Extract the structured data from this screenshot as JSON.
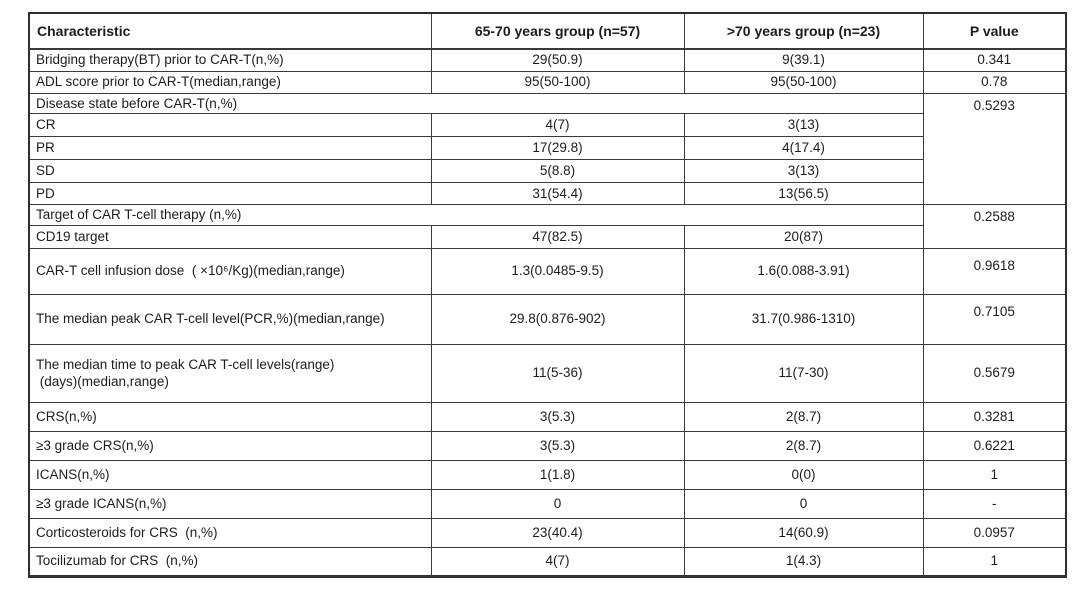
{
  "table": {
    "columns": [
      "Characteristic",
      "65-70 years group (n=57)",
      ">70 years group (n=23)",
      "P value"
    ],
    "rows": [
      {
        "kind": "data",
        "label": "Bridging therapy(BT) prior to CAR-T(n,%)",
        "group1": "29(50.9)",
        "group2": "9(39.1)",
        "p": "0.341"
      },
      {
        "kind": "data",
        "label": "ADL score prior to CAR-T(median,range)",
        "group1": "95(50-100)",
        "group2": "95(50-100)",
        "p": "0.78"
      },
      {
        "kind": "section",
        "label": "Disease state before CAR-T(n,%)",
        "p": "0.5293",
        "p_rowspan": 5
      },
      {
        "kind": "sub",
        "label": "CR",
        "group1": "4(7)",
        "group2": "3(13)"
      },
      {
        "kind": "sub",
        "label": "PR",
        "group1": "17(29.8)",
        "group2": "4(17.4)"
      },
      {
        "kind": "sub",
        "label": "SD",
        "group1": "5(8.8)",
        "group2": "3(13)"
      },
      {
        "kind": "sub",
        "label": "PD",
        "group1": "31(54.4)",
        "group2": "13(56.5)"
      },
      {
        "kind": "section",
        "label": "Target of CAR T-cell therapy (n,%)",
        "p": "0.2588",
        "p_rowspan": 2
      },
      {
        "kind": "sub",
        "label": "CD19 target",
        "group1": "47(82.5)",
        "group2": "20(87)"
      },
      {
        "kind": "data",
        "label": "CAR-T cell infusion dose  ( ×10⁶/Kg)(median,range)",
        "group1": "1.3(0.0485-9.5)",
        "group2": "1.6(0.088-3.91)",
        "p": "0.9618"
      },
      {
        "kind": "data",
        "label": "The median peak CAR T-cell level(PCR,%)(median,range)",
        "group1": "29.8(0.876-902)",
        "group2": "31.7(0.986-1310)",
        "p": "0.7105"
      },
      {
        "kind": "data",
        "label": "The median time to peak CAR T-cell levels(range)\n (days)(median,range)",
        "group1": "11(5-36)",
        "group2": "11(7-30)",
        "p": "0.5679"
      },
      {
        "kind": "data",
        "label": "CRS(n,%)",
        "group1": "3(5.3)",
        "group2": "2(8.7)",
        "p": "0.3281"
      },
      {
        "kind": "data",
        "label": "≥3 grade CRS(n,%)",
        "group1": "3(5.3)",
        "group2": "2(8.7)",
        "p": "0.6221"
      },
      {
        "kind": "data",
        "label": "ICANS(n,%)",
        "group1": "1(1.8)",
        "group2": "0(0)",
        "p": "1"
      },
      {
        "kind": "data",
        "label": "≥3 grade ICANS(n,%)",
        "group1": "0",
        "group2": "0",
        "p": "-"
      },
      {
        "kind": "data",
        "label": "Corticosteroids for CRS  (n,%)",
        "group1": "23(40.4)",
        "group2": "14(60.9)",
        "p": "0.0957"
      },
      {
        "kind": "data",
        "label": "Tocilizumab for CRS  (n,%)",
        "group1": "4(7)",
        "group2": "1(4.3)",
        "p": "1"
      }
    ]
  }
}
